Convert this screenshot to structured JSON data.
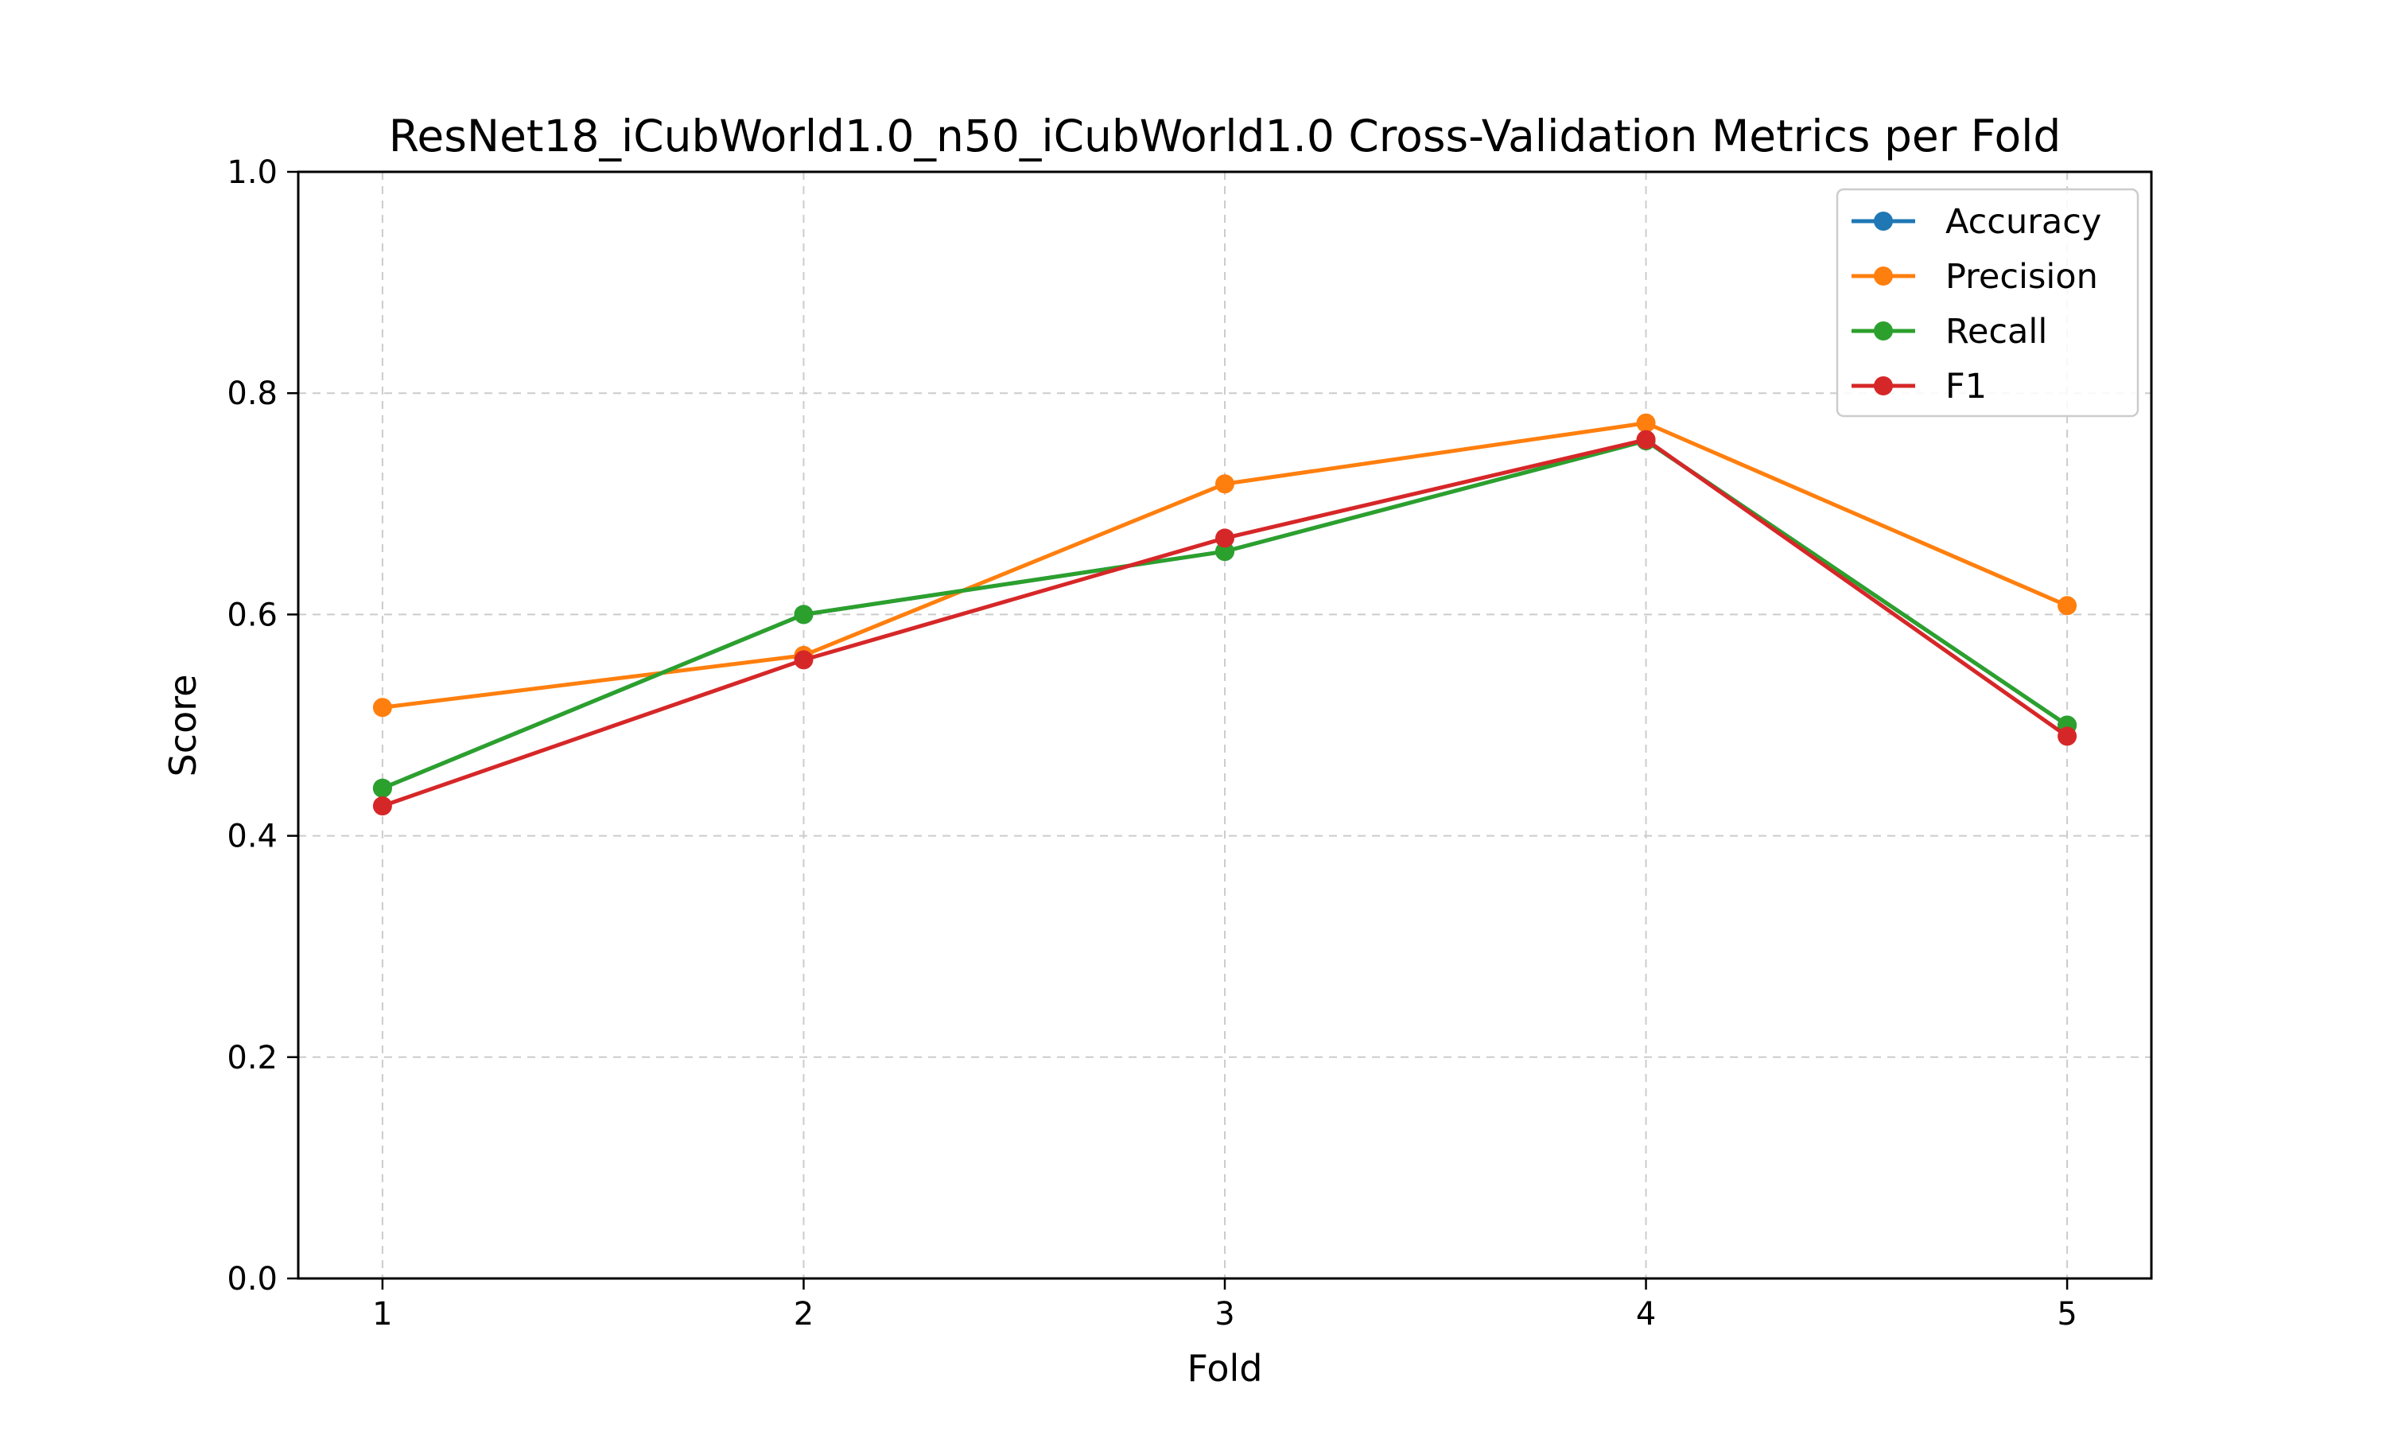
{
  "chart_data": {
    "type": "line",
    "title": "ResNet18_iCubWorld1.0_n50_iCubWorld1.0 Cross-Validation Metrics per Fold",
    "xlabel": "Fold",
    "ylabel": "Score",
    "x": [
      1,
      2,
      3,
      4,
      5
    ],
    "x_ticks": [
      "1",
      "2",
      "3",
      "4",
      "5"
    ],
    "xlim": [
      0.8,
      5.2
    ],
    "ylim": [
      0.0,
      1.0
    ],
    "y_ticks": [
      "0.0",
      "0.2",
      "0.4",
      "0.6",
      "0.8",
      "1.0"
    ],
    "grid": true,
    "legend_position": "top-right",
    "series": [
      {
        "name": "Accuracy",
        "color": "#1f77b4",
        "values": [
          0.443,
          0.6,
          0.657,
          0.757,
          0.5
        ]
      },
      {
        "name": "Precision",
        "color": "#ff7f0e",
        "values": [
          0.516,
          0.563,
          0.718,
          0.773,
          0.608
        ]
      },
      {
        "name": "Recall",
        "color": "#2ca02c",
        "values": [
          0.443,
          0.6,
          0.657,
          0.757,
          0.5
        ]
      },
      {
        "name": "F1",
        "color": "#d62728",
        "values": [
          0.427,
          0.559,
          0.669,
          0.758,
          0.49
        ]
      }
    ]
  }
}
